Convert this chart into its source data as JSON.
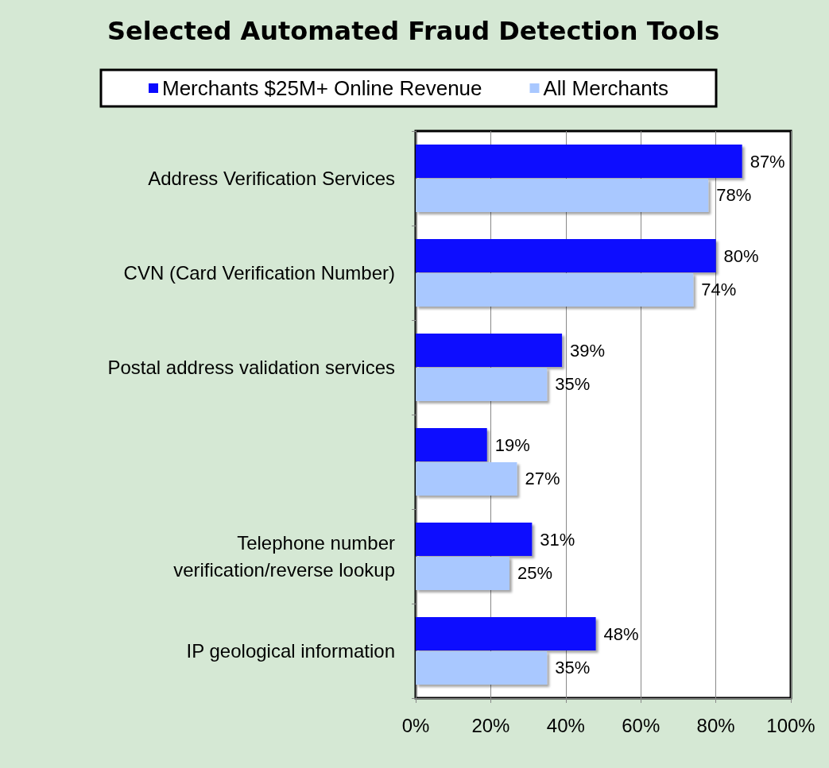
{
  "chart_data": {
    "type": "bar",
    "orientation": "horizontal",
    "title": "Selected Automated Fraud Detection Tools",
    "categories": [
      "Address Verification Services",
      "CVN (Card Verification Number)",
      "Postal address validation services",
      null,
      "Telephone number\nverification/reverse lookup",
      "IP geological information"
    ],
    "series": [
      {
        "name": "Merchants $25M+ Online Revenue",
        "color": "#0a0aff",
        "values": [
          87,
          80,
          39,
          19,
          31,
          48
        ],
        "value_labels": [
          "87%",
          "80%",
          "39%",
          "19%",
          "31%",
          "48%"
        ]
      },
      {
        "name": "All Merchants",
        "color": "#a9c8ff",
        "values": [
          78,
          74,
          35,
          27,
          25,
          35
        ],
        "value_labels": [
          "78%",
          "74%",
          "35%",
          "27%",
          "25%",
          "35%"
        ]
      }
    ],
    "xlim": [
      0,
      100
    ],
    "xticks": [
      {
        "value": 0,
        "label": "0%"
      },
      {
        "value": 20,
        "label": "20%"
      },
      {
        "value": 40,
        "label": "40%"
      },
      {
        "value": 60,
        "label": "60%"
      },
      {
        "value": 80,
        "label": "80%"
      },
      {
        "value": 100,
        "label": "100%"
      }
    ],
    "grid": "x",
    "legend": "top"
  }
}
